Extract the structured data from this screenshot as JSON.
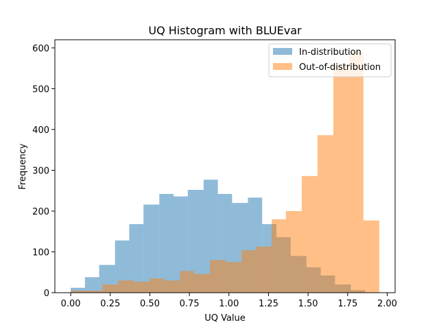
{
  "chart_data": {
    "type": "bar",
    "title": "UQ Histogram with BLUEvar",
    "xlabel": "UQ Value",
    "ylabel": "Frequency",
    "xlim": [
      -0.1,
      2.05
    ],
    "ylim": [
      0,
      620
    ],
    "xticks": [
      "0.00",
      "0.25",
      "0.50",
      "0.75",
      "1.00",
      "1.25",
      "1.50",
      "1.75",
      "2.00"
    ],
    "yticks": [
      "0",
      "100",
      "200",
      "300",
      "400",
      "500",
      "600"
    ],
    "legend_position": "top-right",
    "series": [
      {
        "name": "In-distribution",
        "color": "#1f77b4",
        "alpha": 0.5,
        "bins": [
          [
            0.0,
            0.09,
            12
          ],
          [
            0.09,
            0.18,
            38
          ],
          [
            0.18,
            0.28,
            68
          ],
          [
            0.28,
            0.37,
            128
          ],
          [
            0.37,
            0.46,
            168
          ],
          [
            0.46,
            0.56,
            216
          ],
          [
            0.56,
            0.65,
            242
          ],
          [
            0.65,
            0.74,
            236
          ],
          [
            0.74,
            0.84,
            252
          ],
          [
            0.84,
            0.93,
            277
          ],
          [
            0.93,
            1.02,
            242
          ],
          [
            1.02,
            1.12,
            220
          ],
          [
            1.12,
            1.21,
            233
          ],
          [
            1.21,
            1.3,
            168
          ],
          [
            1.3,
            1.39,
            136
          ],
          [
            1.39,
            1.49,
            90
          ],
          [
            1.49,
            1.58,
            62
          ],
          [
            1.58,
            1.67,
            42
          ],
          [
            1.67,
            1.77,
            20
          ],
          [
            1.77,
            1.86,
            6
          ]
        ]
      },
      {
        "name": "Out-of-distribution",
        "color": "#ff7f0e",
        "alpha": 0.5,
        "bins": [
          [
            0.0,
            0.2,
            5
          ],
          [
            0.2,
            0.3,
            20
          ],
          [
            0.3,
            0.4,
            30
          ],
          [
            0.4,
            0.5,
            27
          ],
          [
            0.5,
            0.59,
            35
          ],
          [
            0.59,
            0.69,
            30
          ],
          [
            0.69,
            0.78,
            53
          ],
          [
            0.78,
            0.88,
            46
          ],
          [
            0.88,
            0.98,
            80
          ],
          [
            0.98,
            1.08,
            75
          ],
          [
            1.08,
            1.17,
            104
          ],
          [
            1.17,
            1.27,
            113
          ],
          [
            1.27,
            1.36,
            180
          ],
          [
            1.36,
            1.46,
            200
          ],
          [
            1.46,
            1.56,
            286
          ],
          [
            1.56,
            1.66,
            386
          ],
          [
            1.66,
            1.76,
            556
          ],
          [
            1.76,
            1.85,
            590
          ],
          [
            1.85,
            1.95,
            177
          ]
        ]
      }
    ]
  }
}
